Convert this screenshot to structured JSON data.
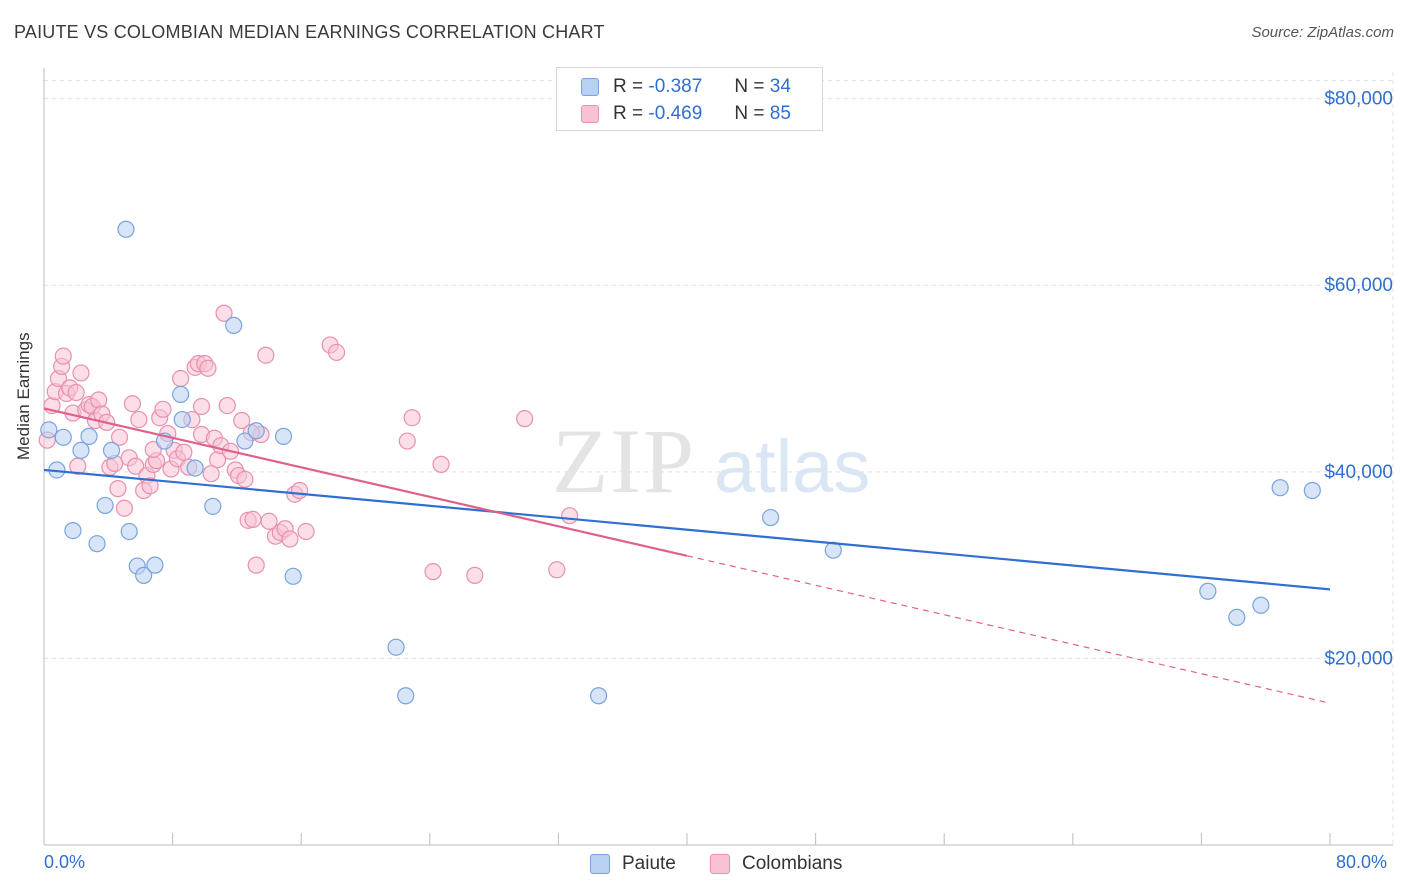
{
  "header": {
    "title": "PAIUTE VS COLOMBIAN MEDIAN EARNINGS CORRELATION CHART",
    "source": "Source: ZipAtlas.com"
  },
  "legend": {
    "rows": [
      {
        "r_label": "R =",
        "r_value": "-0.387",
        "n_label": "N =",
        "n_value": "34"
      },
      {
        "r_label": "R =",
        "r_value": "-0.469",
        "n_label": "N =",
        "n_value": "85"
      }
    ]
  },
  "bottom_legend": {
    "paiute": "Paiute",
    "colombians": "Colombians"
  },
  "colors": {
    "paiute_fill": "#b8d0f2",
    "paiute_stroke": "#7aa3dc",
    "paiute_line": "#2f6fd1",
    "colombians_fill": "#f8c2d3",
    "colombians_stroke": "#e890ae",
    "colombians_line": "#e0608c",
    "axis_text": "#2f6fd1",
    "grid": "#e0e0e0"
  },
  "watermark": {
    "zip": "ZIP",
    "atlas": "atlas"
  },
  "chart_data": {
    "type": "scatter",
    "title": "PAIUTE VS COLOMBIAN MEDIAN EARNINGS CORRELATION CHART",
    "xlabel": "",
    "ylabel": "Median Earnings",
    "xlim": [
      0,
      80
    ],
    "ylim": [
      0,
      82000
    ],
    "x_tick_labels": [
      "0.0%",
      "80.0%"
    ],
    "y_ticks": [
      20000,
      40000,
      60000,
      80000
    ],
    "y_tick_labels": [
      "$20,000",
      "$40,000",
      "$60,000",
      "$80,000"
    ],
    "series": [
      {
        "name": "Paiute",
        "r": -0.387,
        "n": 34,
        "trend": {
          "x0": 0,
          "y0": 40200,
          "x1": 80,
          "y1": 27400
        },
        "points": [
          [
            0.3,
            44500
          ],
          [
            0.8,
            40200
          ],
          [
            1.2,
            43700
          ],
          [
            1.8,
            33700
          ],
          [
            2.3,
            42300
          ],
          [
            2.8,
            43800
          ],
          [
            3.3,
            32300
          ],
          [
            3.8,
            36400
          ],
          [
            4.2,
            42300
          ],
          [
            5.1,
            66000
          ],
          [
            5.3,
            33600
          ],
          [
            5.8,
            29900
          ],
          [
            6.2,
            28900
          ],
          [
            6.9,
            30000
          ],
          [
            7.5,
            43300
          ],
          [
            8.5,
            48300
          ],
          [
            8.6,
            45600
          ],
          [
            9.4,
            40400
          ],
          [
            10.5,
            36300
          ],
          [
            11.8,
            55700
          ],
          [
            12.5,
            43300
          ],
          [
            13.2,
            44400
          ],
          [
            14.9,
            43800
          ],
          [
            15.5,
            28800
          ],
          [
            21.9,
            21200
          ],
          [
            22.5,
            16000
          ],
          [
            34.5,
            16000
          ],
          [
            45.2,
            35100
          ],
          [
            49.1,
            31600
          ],
          [
            72.4,
            27200
          ],
          [
            74.2,
            24400
          ],
          [
            75.7,
            25700
          ],
          [
            76.9,
            38300
          ],
          [
            78.9,
            38000
          ]
        ]
      },
      {
        "name": "Colombians",
        "r": -0.469,
        "n": 85,
        "trend": {
          "x0": 0,
          "y0": 46800,
          "x1": 40,
          "y1": 31000,
          "dash_x1": 80,
          "dash_y1": 15200
        },
        "points": [
          [
            0.2,
            43400
          ],
          [
            0.5,
            47100
          ],
          [
            0.7,
            48600
          ],
          [
            0.9,
            50000
          ],
          [
            1.1,
            51300
          ],
          [
            1.2,
            52400
          ],
          [
            1.4,
            48400
          ],
          [
            1.6,
            49000
          ],
          [
            1.8,
            46300
          ],
          [
            2.0,
            48500
          ],
          [
            2.3,
            50600
          ],
          [
            2.6,
            46600
          ],
          [
            2.8,
            47200
          ],
          [
            3.0,
            47000
          ],
          [
            3.2,
            45500
          ],
          [
            3.4,
            47700
          ],
          [
            3.6,
            46200
          ],
          [
            3.9,
            45300
          ],
          [
            4.1,
            40500
          ],
          [
            4.4,
            40900
          ],
          [
            4.7,
            43700
          ],
          [
            5.0,
            36100
          ],
          [
            5.3,
            41500
          ],
          [
            5.5,
            47300
          ],
          [
            5.7,
            40600
          ],
          [
            5.9,
            45600
          ],
          [
            6.2,
            38000
          ],
          [
            6.4,
            39600
          ],
          [
            6.6,
            38500
          ],
          [
            6.8,
            40800
          ],
          [
            7.0,
            41200
          ],
          [
            7.2,
            45800
          ],
          [
            7.4,
            46700
          ],
          [
            7.7,
            44100
          ],
          [
            7.9,
            40300
          ],
          [
            8.1,
            42300
          ],
          [
            8.3,
            41400
          ],
          [
            8.5,
            50000
          ],
          [
            8.7,
            42100
          ],
          [
            9.0,
            40500
          ],
          [
            9.2,
            45600
          ],
          [
            9.4,
            51200
          ],
          [
            9.6,
            51600
          ],
          [
            9.8,
            44000
          ],
          [
            10.0,
            51600
          ],
          [
            10.2,
            51100
          ],
          [
            10.4,
            39800
          ],
          [
            10.6,
            43600
          ],
          [
            10.8,
            41300
          ],
          [
            11.0,
            42800
          ],
          [
            11.2,
            57000
          ],
          [
            11.4,
            47100
          ],
          [
            11.6,
            42200
          ],
          [
            11.9,
            40200
          ],
          [
            12.1,
            39600
          ],
          [
            12.3,
            45500
          ],
          [
            12.5,
            39200
          ],
          [
            12.7,
            34800
          ],
          [
            13.0,
            34900
          ],
          [
            13.2,
            30000
          ],
          [
            13.5,
            44000
          ],
          [
            13.8,
            52500
          ],
          [
            14.0,
            34700
          ],
          [
            14.4,
            33100
          ],
          [
            14.7,
            33500
          ],
          [
            15.0,
            33900
          ],
          [
            15.3,
            32800
          ],
          [
            15.6,
            37600
          ],
          [
            15.9,
            38000
          ],
          [
            16.3,
            33600
          ],
          [
            17.8,
            53600
          ],
          [
            18.2,
            52800
          ],
          [
            22.6,
            43300
          ],
          [
            22.9,
            45800
          ],
          [
            24.7,
            40800
          ],
          [
            24.2,
            29300
          ],
          [
            26.8,
            28900
          ],
          [
            29.9,
            45700
          ],
          [
            31.9,
            29500
          ],
          [
            32.7,
            35300
          ],
          [
            2.1,
            40600
          ],
          [
            4.6,
            38200
          ],
          [
            6.8,
            42400
          ],
          [
            9.8,
            47000
          ],
          [
            12.9,
            44200
          ]
        ]
      }
    ]
  }
}
